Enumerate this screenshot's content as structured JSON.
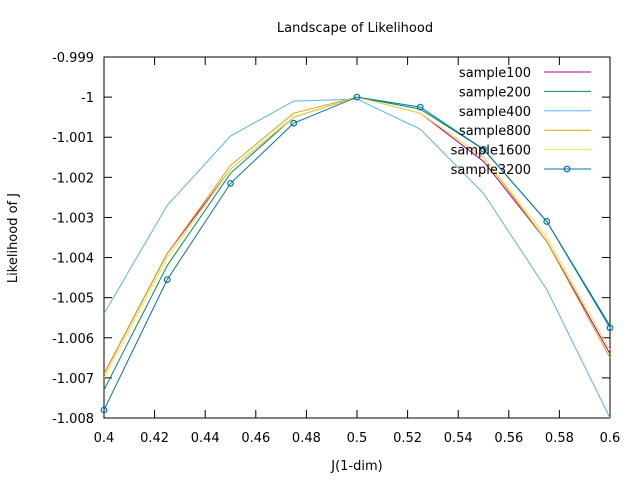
{
  "chart_data": {
    "type": "line",
    "title": "Landscape of Likelihood",
    "xlabel": "J(1-dim)",
    "ylabel": "Likelihood of J",
    "xlim": [
      0.4,
      0.6
    ],
    "ylim": [
      -1.008,
      -0.999
    ],
    "xticks": [
      0.4,
      0.42,
      0.44,
      0.46,
      0.48,
      0.5,
      0.52,
      0.54,
      0.56,
      0.58,
      0.6
    ],
    "xtick_labels": [
      "0.4",
      "0.42",
      "0.44",
      "0.46",
      "0.48",
      "0.5",
      "0.52",
      "0.54",
      "0.56",
      "0.58",
      "0.6"
    ],
    "yticks": [
      -0.999,
      -1.0,
      -1.001,
      -1.002,
      -1.003,
      -1.004,
      -1.005,
      -1.006,
      -1.007,
      -1.008
    ],
    "ytick_labels": [
      "-0.999",
      "-1",
      "-1.001",
      "-1.002",
      "-1.003",
      "-1.004",
      "-1.005",
      "-1.006",
      "-1.007",
      "-1.008"
    ],
    "grid": false,
    "legend_position": "top-right",
    "x": [
      0.4,
      0.425,
      0.45,
      0.475,
      0.5,
      0.525,
      0.55,
      0.575,
      0.6
    ],
    "series": [
      {
        "name": "sample100",
        "color": "#a0009f",
        "marker": "none",
        "values": [
          -1.0069,
          -1.0039,
          -1.0018,
          -1.0005,
          -1.0,
          -1.0004,
          -1.0016,
          -1.0036,
          -1.0064
        ]
      },
      {
        "name": "sample200",
        "color": "#008a5e",
        "marker": "none",
        "values": [
          -1.0073,
          -1.0042,
          -1.0019,
          -1.0005,
          -1.0,
          -1.0003,
          -1.0013,
          -1.0031,
          -1.0057
        ]
      },
      {
        "name": "sample400",
        "color": "#56b4e9",
        "marker": "none",
        "values": [
          -1.0054,
          -1.0027,
          -1.00097,
          -1.0001,
          -1.00005,
          -1.0008,
          -1.0024,
          -1.0048,
          -1.008
        ]
      },
      {
        "name": "sample800",
        "color": "#e69f00",
        "marker": "none",
        "values": [
          -1.0069,
          -1.0039,
          -1.0017,
          -1.0004,
          -1.0,
          -1.0004,
          -1.0015,
          -1.0036,
          -1.0065
        ]
      },
      {
        "name": "sample1600",
        "color": "#f0e442",
        "marker": "none",
        "values": [
          -1.007,
          -1.004,
          -1.0018,
          -1.0005,
          -1.0,
          -1.0004,
          -1.0015,
          -1.0035,
          -1.0063
        ]
      },
      {
        "name": "sample3200",
        "color": "#0072b2",
        "marker": "circle",
        "values": [
          -1.0078,
          -1.00455,
          -1.00215,
          -1.00065,
          -1.0,
          -1.00025,
          -1.0013,
          -1.0031,
          -1.00575
        ]
      }
    ]
  }
}
